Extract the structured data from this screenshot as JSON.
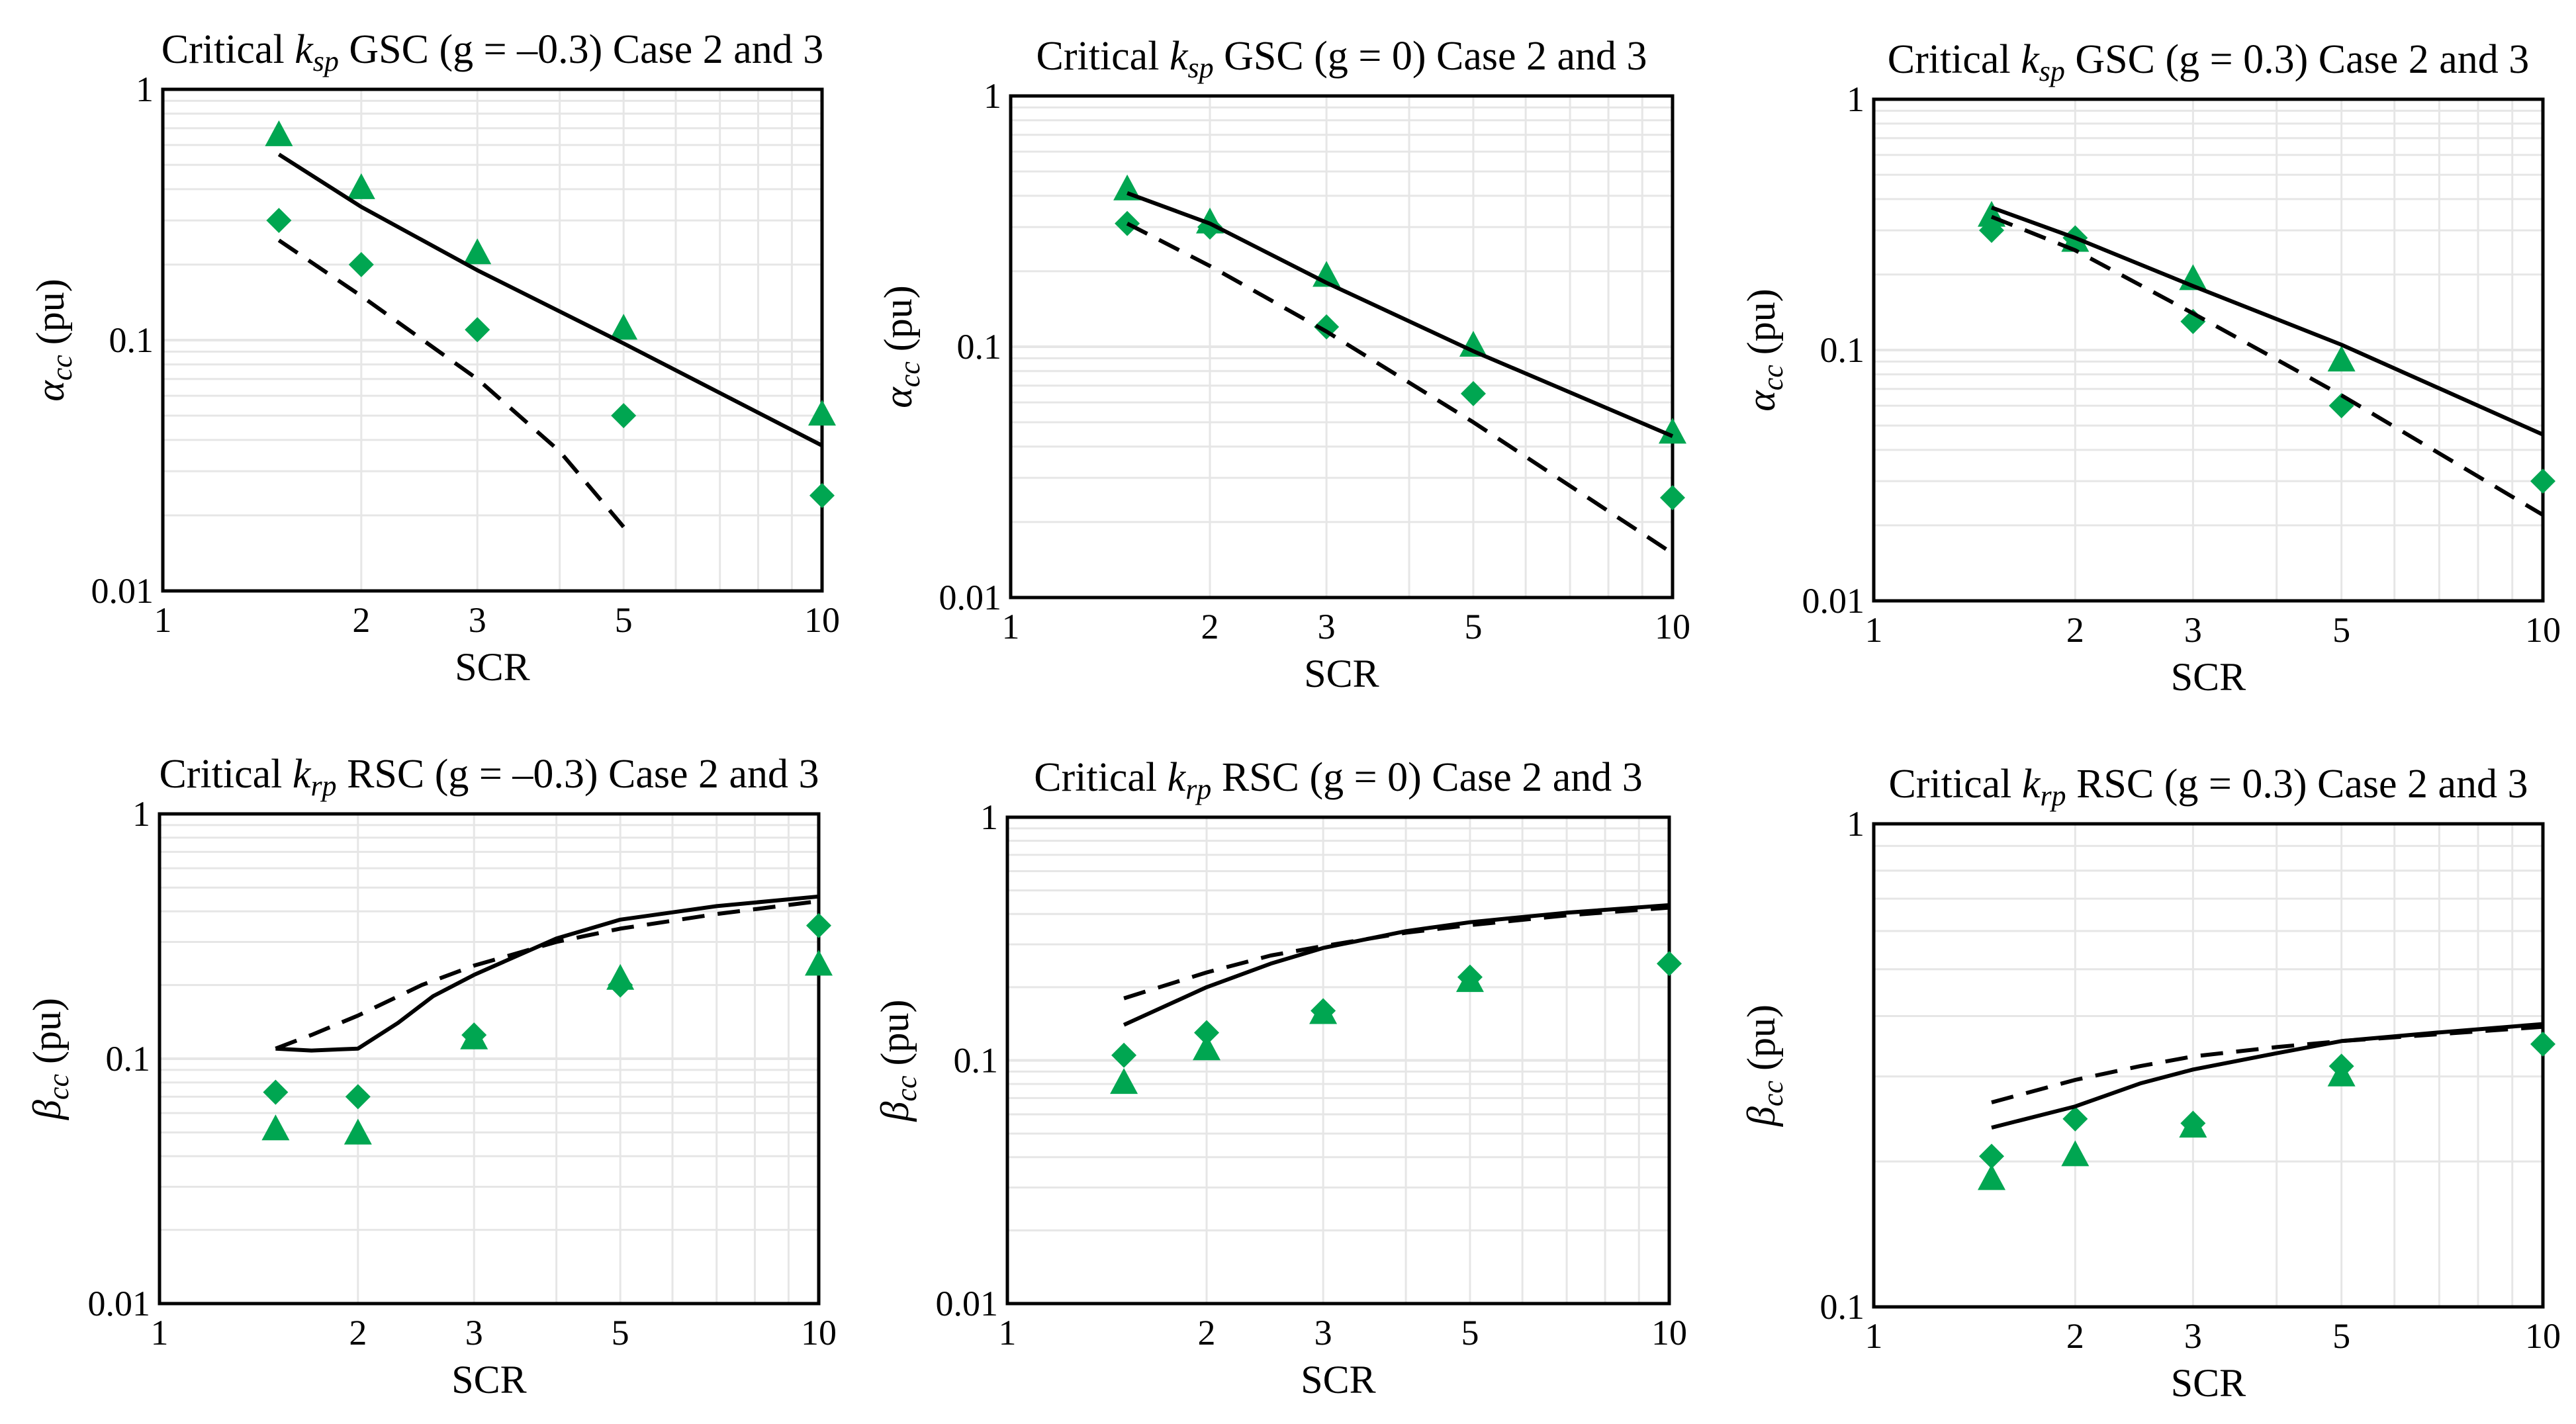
{
  "colors": {
    "marker": "#00A651",
    "line": "#000000",
    "grid": "#e6e6e6"
  },
  "chart_data": [
    {
      "type": "scatter",
      "title": {
        "prefix": "Critical ",
        "sym": "k",
        "sub": "sp",
        "rest": " GSC (g = –0.3) Case 2 and 3"
      },
      "xlabel": "SCR",
      "ylabel": {
        "sym": "α",
        "sub": "cc",
        "unit": " (pu)"
      },
      "xscale": "log",
      "yscale": "log",
      "xlim": [
        1,
        10
      ],
      "ylim": [
        0.01,
        1
      ],
      "xticks": [
        1,
        2,
        3,
        5,
        10
      ],
      "xticklabels": [
        "1",
        "2",
        "3",
        "5",
        "10"
      ],
      "yticks": [
        0.01,
        0.1,
        1
      ],
      "yticklabels": [
        "0.01",
        "0.1",
        "1"
      ],
      "grid": true,
      "series": [
        {
          "marker": "triangle",
          "x": [
            1.5,
            2,
            3,
            5,
            10
          ],
          "y": [
            0.65,
            0.4,
            0.22,
            0.11,
            0.05
          ]
        },
        {
          "marker": "diamond",
          "x": [
            1.5,
            2,
            3,
            5,
            10
          ],
          "y": [
            0.3,
            0.2,
            0.11,
            0.05,
            0.024
          ]
        },
        {
          "style": "solid",
          "x": [
            1.5,
            2,
            3,
            5,
            10
          ],
          "y": [
            0.55,
            0.34,
            0.19,
            0.097,
            0.038
          ]
        },
        {
          "style": "dashed",
          "x": [
            1.5,
            2,
            3,
            4,
            5
          ],
          "y": [
            0.25,
            0.15,
            0.07,
            0.036,
            0.018
          ]
        }
      ]
    },
    {
      "type": "scatter",
      "title": {
        "prefix": "Critical ",
        "sym": "k",
        "sub": "sp",
        "rest": " GSC (g = 0) Case 2 and 3"
      },
      "xlabel": "SCR",
      "ylabel": {
        "sym": "α",
        "sub": "cc",
        "unit": " (pu)"
      },
      "xscale": "log",
      "yscale": "log",
      "xlim": [
        1,
        10
      ],
      "ylim": [
        0.01,
        1
      ],
      "xticks": [
        1,
        2,
        3,
        5,
        10
      ],
      "xticklabels": [
        "1",
        "2",
        "3",
        "5",
        "10"
      ],
      "yticks": [
        0.01,
        0.1,
        1
      ],
      "yticklabels": [
        "0.01",
        "0.1",
        "1"
      ],
      "grid": true,
      "series": [
        {
          "marker": "triangle",
          "x": [
            1.5,
            2,
            3,
            5,
            10
          ],
          "y": [
            0.42,
            0.31,
            0.19,
            0.1,
            0.045
          ]
        },
        {
          "marker": "diamond",
          "x": [
            1.5,
            2,
            3,
            5,
            10
          ],
          "y": [
            0.31,
            0.3,
            0.12,
            0.065,
            0.025
          ]
        },
        {
          "style": "solid",
          "x": [
            1.5,
            2,
            3,
            5,
            10
          ],
          "y": [
            0.41,
            0.31,
            0.18,
            0.096,
            0.044
          ]
        },
        {
          "style": "dashed",
          "x": [
            1.5,
            2,
            3,
            5,
            10
          ],
          "y": [
            0.31,
            0.21,
            0.115,
            0.05,
            0.015
          ]
        }
      ]
    },
    {
      "type": "scatter",
      "title": {
        "prefix": "Critical ",
        "sym": "k",
        "sub": "sp",
        "rest": " GSC (g = 0.3) Case 2 and 3"
      },
      "xlabel": "SCR",
      "ylabel": {
        "sym": "α",
        "sub": "cc",
        "unit": " (pu)"
      },
      "xscale": "log",
      "yscale": "log",
      "xlim": [
        1,
        10
      ],
      "ylim": [
        0.01,
        1
      ],
      "xticks": [
        1,
        2,
        3,
        5,
        10
      ],
      "xticklabels": [
        "1",
        "2",
        "3",
        "5",
        "10"
      ],
      "yticks": [
        0.01,
        0.1,
        1
      ],
      "yticklabels": [
        "0.01",
        "0.1",
        "1"
      ],
      "grid": true,
      "series": [
        {
          "marker": "triangle",
          "x": [
            1.5,
            2,
            3,
            5
          ],
          "y": [
            0.34,
            0.27,
            0.19,
            0.09
          ]
        },
        {
          "marker": "diamond",
          "x": [
            1.5,
            2,
            3,
            5,
            10
          ],
          "y": [
            0.3,
            0.28,
            0.13,
            0.06,
            0.03
          ]
        },
        {
          "style": "solid",
          "x": [
            1.5,
            2,
            3,
            5,
            10
          ],
          "y": [
            0.37,
            0.28,
            0.18,
            0.105,
            0.046
          ]
        },
        {
          "style": "dashed",
          "x": [
            1.5,
            2,
            3,
            5,
            10
          ],
          "y": [
            0.34,
            0.25,
            0.14,
            0.066,
            0.022
          ]
        }
      ]
    },
    {
      "type": "scatter",
      "title": {
        "prefix": "Critical ",
        "sym": "k",
        "sub": "rp",
        "rest": " RSC (g = –0.3) Case 2 and 3"
      },
      "xlabel": "SCR",
      "ylabel": {
        "sym": "β",
        "sub": "cc",
        "unit": " (pu)"
      },
      "xscale": "log",
      "yscale": "log",
      "xlim": [
        1,
        10
      ],
      "ylim": [
        0.01,
        1
      ],
      "xticks": [
        1,
        2,
        3,
        5,
        10
      ],
      "xticklabels": [
        "1",
        "2",
        "3",
        "5",
        "10"
      ],
      "yticks": [
        0.01,
        0.1,
        1
      ],
      "yticklabels": [
        "0.01",
        "0.1",
        "1"
      ],
      "grid": true,
      "series": [
        {
          "marker": "triangle",
          "x": [
            1.5,
            2,
            3,
            5,
            10
          ],
          "y": [
            0.051,
            0.049,
            0.12,
            0.21,
            0.24
          ]
        },
        {
          "marker": "diamond",
          "x": [
            1.5,
            2,
            3,
            5,
            10
          ],
          "y": [
            0.073,
            0.07,
            0.125,
            0.2,
            0.35
          ]
        },
        {
          "style": "solid",
          "x": [
            1.5,
            1.7,
            2,
            2.3,
            2.6,
            3,
            4,
            5,
            7,
            10
          ],
          "y": [
            0.11,
            0.108,
            0.11,
            0.14,
            0.18,
            0.22,
            0.31,
            0.37,
            0.42,
            0.46
          ]
        },
        {
          "style": "dashed",
          "x": [
            1.5,
            1.7,
            2,
            2.5,
            3,
            4,
            5,
            7,
            10
          ],
          "y": [
            0.11,
            0.125,
            0.15,
            0.2,
            0.24,
            0.3,
            0.34,
            0.39,
            0.44
          ]
        }
      ]
    },
    {
      "type": "scatter",
      "title": {
        "prefix": "Critical ",
        "sym": "k",
        "sub": "rp",
        "rest": " RSC (g = 0) Case 2 and 3"
      },
      "xlabel": "SCR",
      "ylabel": {
        "sym": "β",
        "sub": "cc",
        "unit": " (pu)"
      },
      "xscale": "log",
      "yscale": "log",
      "xlim": [
        1,
        10
      ],
      "ylim": [
        0.01,
        1
      ],
      "xticks": [
        1,
        2,
        3,
        5,
        10
      ],
      "xticklabels": [
        "1",
        "2",
        "3",
        "5",
        "10"
      ],
      "yticks": [
        0.01,
        0.1,
        1
      ],
      "yticklabels": [
        "0.01",
        "0.1",
        "1"
      ],
      "grid": true,
      "series": [
        {
          "marker": "triangle",
          "x": [
            1.5,
            2,
            3,
            5
          ],
          "y": [
            0.08,
            0.11,
            0.155,
            0.21
          ]
        },
        {
          "marker": "diamond",
          "x": [
            1.5,
            2,
            3,
            5,
            10
          ],
          "y": [
            0.105,
            0.13,
            0.16,
            0.22,
            0.25
          ]
        },
        {
          "style": "solid",
          "x": [
            1.5,
            2,
            2.5,
            3,
            4,
            5,
            7,
            10
          ],
          "y": [
            0.14,
            0.2,
            0.25,
            0.29,
            0.34,
            0.37,
            0.405,
            0.435
          ]
        },
        {
          "style": "dashed",
          "x": [
            1.5,
            2,
            2.5,
            3,
            4,
            5,
            7,
            10
          ],
          "y": [
            0.18,
            0.23,
            0.27,
            0.295,
            0.335,
            0.36,
            0.395,
            0.425
          ]
        }
      ]
    },
    {
      "type": "scatter",
      "title": {
        "prefix": "Critical ",
        "sym": "k",
        "sub": "rp",
        "rest": " RSC (g = 0.3) Case 2 and 3"
      },
      "xlabel": "SCR",
      "ylabel": {
        "sym": "β",
        "sub": "cc",
        "unit": " (pu)"
      },
      "xscale": "log",
      "yscale": "log",
      "xlim": [
        1,
        10
      ],
      "ylim": [
        0.1,
        1
      ],
      "xticks": [
        1,
        2,
        3,
        5,
        10
      ],
      "xticklabels": [
        "1",
        "2",
        "3",
        "5",
        "10"
      ],
      "yticks": [
        0.1,
        1
      ],
      "yticklabels": [
        "0.1",
        "1"
      ],
      "grid": true,
      "series": [
        {
          "marker": "triangle",
          "x": [
            1.5,
            2,
            3,
            5
          ],
          "y": [
            0.183,
            0.205,
            0.235,
            0.3
          ]
        },
        {
          "marker": "diamond",
          "x": [
            1.5,
            2,
            3,
            5,
            10
          ],
          "y": [
            0.205,
            0.245,
            0.24,
            0.315,
            0.35
          ]
        },
        {
          "style": "solid",
          "x": [
            1.5,
            2,
            2.5,
            3,
            4,
            5,
            7,
            10
          ],
          "y": [
            0.235,
            0.26,
            0.29,
            0.31,
            0.335,
            0.355,
            0.37,
            0.385
          ]
        },
        {
          "style": "dashed",
          "x": [
            1.5,
            2,
            2.5,
            3,
            4,
            5,
            7,
            10
          ],
          "y": [
            0.265,
            0.295,
            0.315,
            0.33,
            0.345,
            0.355,
            0.367,
            0.38
          ]
        }
      ]
    }
  ]
}
